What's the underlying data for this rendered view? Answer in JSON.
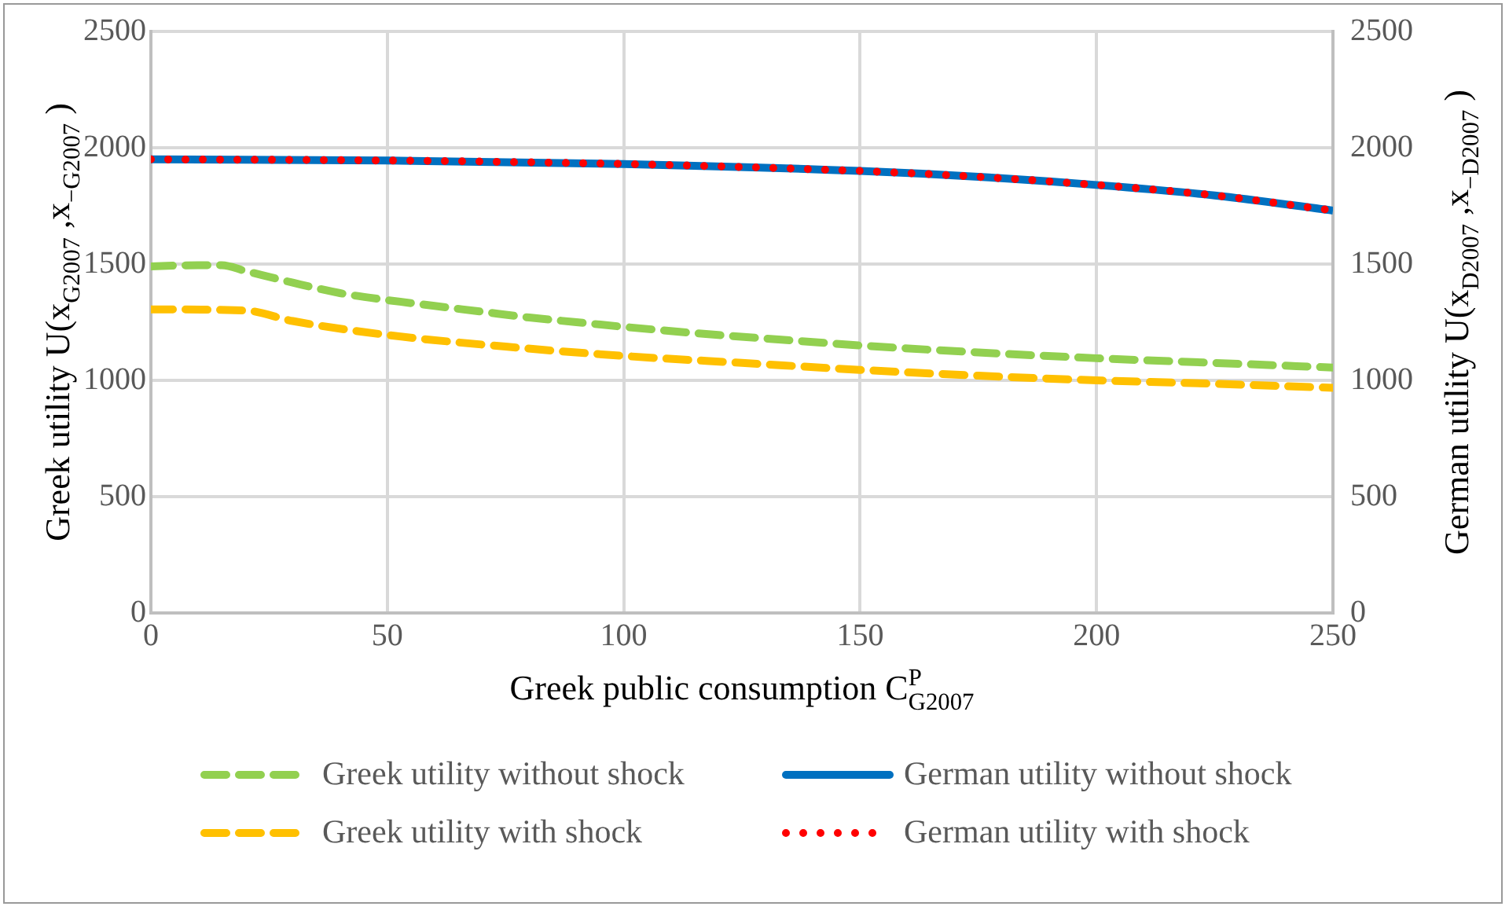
{
  "chart_data": {
    "type": "line",
    "xlabel": "Greek public consumption C$^{P}$$_{G2007}$",
    "ylabel": "Greek utility U(x$_{G2007}$ ,x$_{−G2007}$ )",
    "y2label": "German utility U(x$_{D2007}$ ,x$_{−D2007}$ )",
    "xlim": [
      0,
      250
    ],
    "xticks": [
      0,
      50,
      100,
      150,
      200,
      250
    ],
    "ylim": [
      0,
      2500
    ],
    "yticks": [
      0,
      500,
      1000,
      1500,
      2000,
      2500
    ],
    "y2lim": [
      0,
      2500
    ],
    "y2ticks": [
      0,
      500,
      1000,
      1500,
      2000,
      2500
    ],
    "grid": true,
    "legend": "bottom",
    "marker": "none",
    "series": [
      {
        "name": "Greek utility without shock",
        "color": "#92d050",
        "line_style": "dashed",
        "x": [
          0,
          10,
          15,
          20,
          30,
          40,
          50,
          60,
          70,
          80,
          90,
          100,
          120,
          140,
          150,
          175,
          200,
          225,
          250
        ],
        "values": [
          1490,
          1495,
          1495,
          1470,
          1420,
          1375,
          1345,
          1320,
          1295,
          1270,
          1250,
          1230,
          1195,
          1165,
          1150,
          1120,
          1095,
          1075,
          1055
        ]
      },
      {
        "name": "German utility without shock",
        "color": "#0070c0",
        "line_style": "solid",
        "x": [
          0,
          50,
          100,
          150,
          175,
          200,
          225,
          250
        ],
        "values": [
          1950,
          1945,
          1930,
          1900,
          1875,
          1840,
          1795,
          1730
        ]
      },
      {
        "name": "Greek utility with shock",
        "color": "#ffc000",
        "line_style": "dashed",
        "x": [
          0,
          20,
          30,
          50,
          75,
          100,
          125,
          150,
          175,
          200,
          225,
          250
        ],
        "values": [
          1305,
          1300,
          1255,
          1195,
          1145,
          1105,
          1075,
          1045,
          1020,
          1000,
          985,
          968
        ]
      },
      {
        "name": "German utility with shock",
        "color": "#ff0000",
        "line_style": "dotted",
        "x": [
          0,
          50,
          100,
          150,
          175,
          200,
          225,
          250
        ],
        "values": [
          1950,
          1945,
          1930,
          1900,
          1875,
          1840,
          1795,
          1730
        ]
      }
    ]
  }
}
